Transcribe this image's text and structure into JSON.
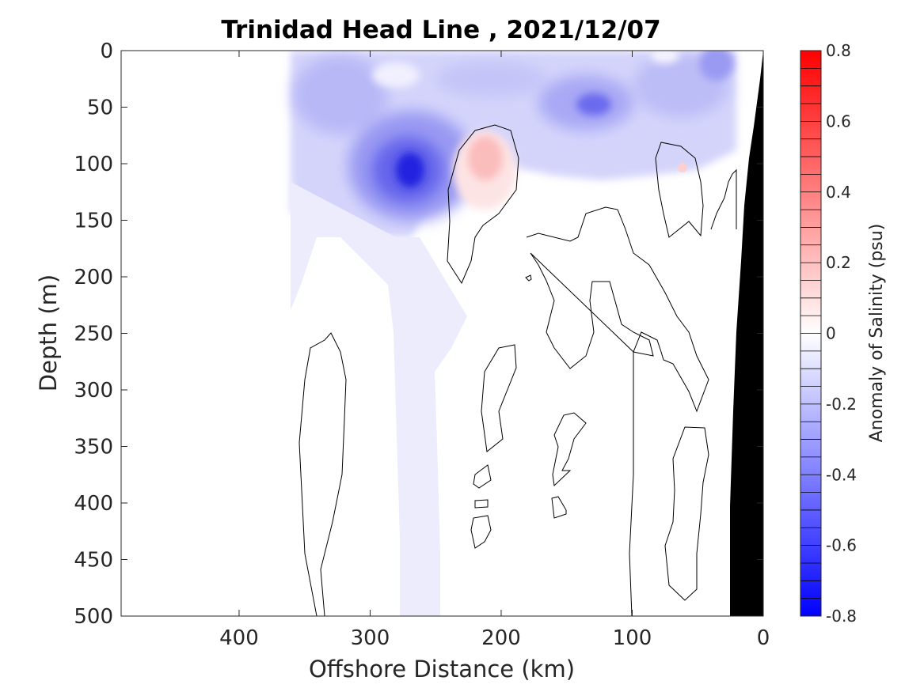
{
  "chart_data": {
    "type": "contour",
    "title": "Trinidad Head Line , 2021/12/07",
    "xlabel": "Offshore Distance (km)",
    "ylabel": "Depth (m)",
    "xlim": [
      490,
      0
    ],
    "ylim": [
      0,
      500
    ],
    "x_reversed": true,
    "y_reversed": true,
    "xticks": [
      400,
      300,
      200,
      100,
      0
    ],
    "yticks": [
      0,
      50,
      100,
      150,
      200,
      250,
      300,
      350,
      400,
      450,
      500
    ],
    "colorbar": {
      "label": "Anomaly of Salinity (psu)",
      "range": [
        -0.8,
        0.8
      ],
      "step": 0.05,
      "ticks": [
        "0.8",
        "0.6",
        "0.4",
        "0.2",
        "0",
        "-0.2",
        "-0.4",
        "-0.6",
        "-0.8"
      ],
      "colormap": "blue-white-red"
    },
    "features": [
      {
        "name": "fresh-anomaly-core",
        "x_km": 270,
        "depth_m": 105,
        "value": -0.55
      },
      {
        "name": "fresh-anomaly-nearshore",
        "x_km": 128,
        "depth_m": 48,
        "value": -0.4
      },
      {
        "name": "salty-anomaly-core",
        "x_km": 213,
        "depth_m": 95,
        "value": 0.25
      },
      {
        "name": "bathymetry",
        "description": "shelf/slope"
      }
    ]
  }
}
